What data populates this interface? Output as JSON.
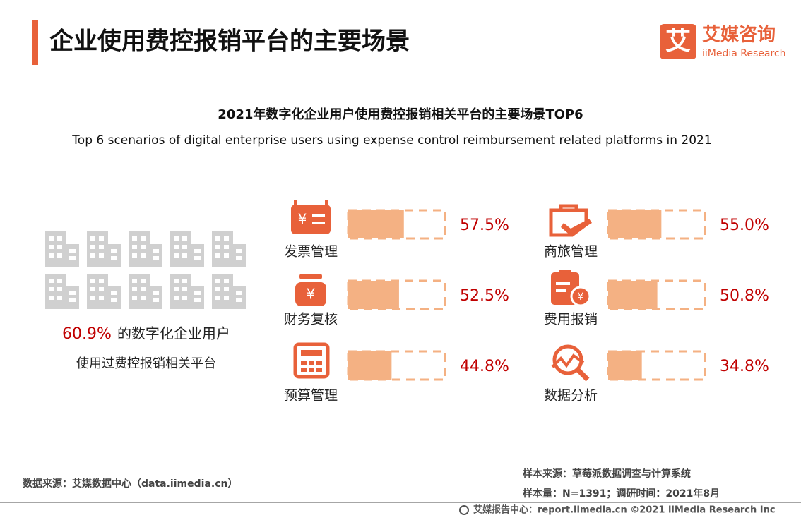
{
  "header": {
    "title": "企业使用费控报销平台的主要场景",
    "logo_cn": "艾媒咨询",
    "logo_en": "iiMedia Research",
    "logo_mark": "艾"
  },
  "chart_data": {
    "type": "bar",
    "title": "2021年数字化企业用户使用费控报销相关平台的主要场景TOP6",
    "subtitle": "Top 6 scenarios of digital enterprise users using expense control reimbursement related platforms in 2021",
    "categories": [
      "发票管理",
      "商旅管理",
      "财务复核",
      "费用报销",
      "预算管理",
      "数据分析"
    ],
    "values": [
      57.5,
      55.0,
      52.5,
      50.8,
      44.8,
      34.8
    ],
    "value_labels": [
      "57.5%",
      "55.0%",
      "52.5%",
      "50.8%",
      "44.8%",
      "34.8%"
    ],
    "xlim": [
      0,
      100
    ],
    "color": "#f4b183",
    "label_color": "#c00000"
  },
  "highlight": {
    "value": 60.9,
    "value_label": "60.9%",
    "text": "的数字化企业用户",
    "text2": "使用过费控报销相关平台"
  },
  "footer": {
    "source": "数据来源：艾媒数据中心（data.iimedia.cn）",
    "sample_source": "样本来源：草莓派数据调查与计算系统",
    "sample": "样本量：N=1391；调研时间：2021年8月",
    "copyright": "艾媒报告中心：report.iimedia.cn  ©2021  iiMedia Research  Inc"
  }
}
